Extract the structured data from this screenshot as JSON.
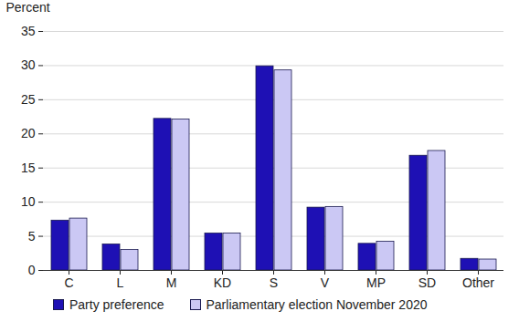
{
  "chart_data": {
    "type": "bar",
    "y_label": "Percent",
    "categories": [
      "C",
      "L",
      "M",
      "KD",
      "S",
      "V",
      "MP",
      "SD",
      "Other"
    ],
    "series": [
      {
        "name": "Party preference",
        "color": "#1e10b4",
        "values": [
          7.3,
          3.8,
          22.2,
          5.4,
          29.9,
          9.2,
          3.9,
          16.8,
          1.7
        ]
      },
      {
        "name": "Parliamentary election November 2020",
        "color": "#cbc8f4",
        "values": [
          7.6,
          3.0,
          22.1,
          5.4,
          29.3,
          9.3,
          4.2,
          17.5,
          1.6
        ]
      }
    ],
    "ylim": [
      0,
      35
    ],
    "yticks": [
      0,
      5,
      10,
      15,
      20,
      25,
      30,
      35
    ],
    "grid": true,
    "legend": "bottom"
  }
}
